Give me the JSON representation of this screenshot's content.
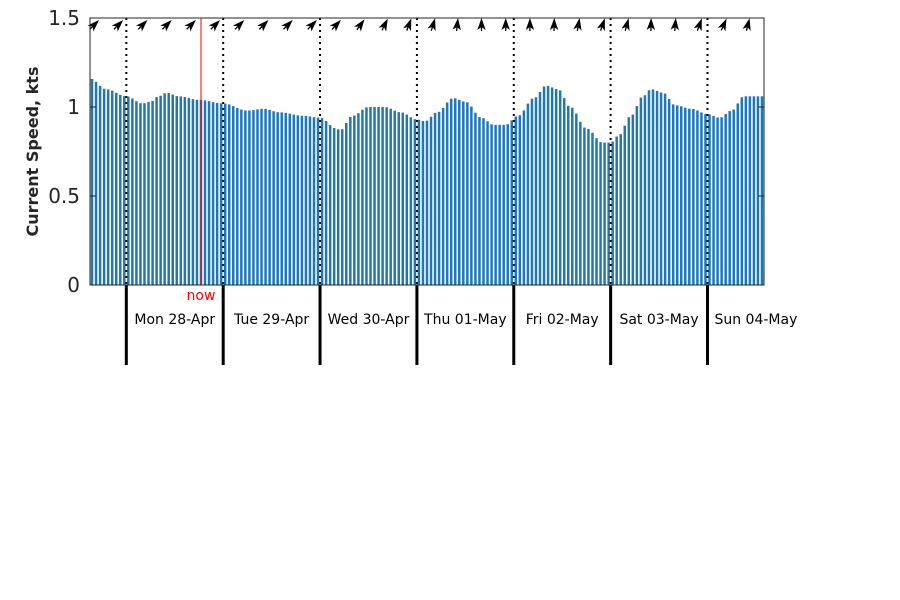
{
  "chart_data": {
    "type": "bar",
    "title": "",
    "xlabel": "",
    "ylabel": "Current Speed, kts",
    "ylim": [
      0,
      1.5
    ],
    "y_ticks": [
      {
        "value": 0,
        "label": "0"
      },
      {
        "value": 0.5,
        "label": "0.5"
      },
      {
        "value": 1,
        "label": "1"
      },
      {
        "value": 1.5,
        "label": "1.5"
      }
    ],
    "x_unit": "hours from 00:00 Mon 28-Apr",
    "x_start_hour": -9,
    "x_end_hour": 158,
    "bar_step_hours": 1,
    "bar_color": "#1f77b4",
    "days": [
      {
        "label": "Mon 28-Apr",
        "start_hour": 0
      },
      {
        "label": "Tue 29-Apr",
        "start_hour": 24
      },
      {
        "label": "Wed 30-Apr",
        "start_hour": 48
      },
      {
        "label": "Thu 01-May",
        "start_hour": 72
      },
      {
        "label": "Fri 02-May",
        "start_hour": 96
      },
      {
        "label": "Sat 03-May",
        "start_hour": 120
      },
      {
        "label": "Sun 04-May",
        "start_hour": 144
      }
    ],
    "now": {
      "label": "now",
      "hour": 18.5,
      "color": "#ff0000"
    },
    "speed_profile": [
      [
        -9,
        1.16
      ],
      [
        -5,
        1.1
      ],
      [
        0,
        1.06
      ],
      [
        4,
        1.02
      ],
      [
        6,
        1.03
      ],
      [
        8,
        1.06
      ],
      [
        10,
        1.08
      ],
      [
        13,
        1.06
      ],
      [
        18,
        1.04
      ],
      [
        24,
        1.02
      ],
      [
        30,
        0.98
      ],
      [
        34,
        0.99
      ],
      [
        38,
        0.97
      ],
      [
        44,
        0.95
      ],
      [
        48,
        0.94
      ],
      [
        52,
        0.88
      ],
      [
        53,
        0.87
      ],
      [
        56,
        0.95
      ],
      [
        60,
        1.0
      ],
      [
        64,
        1.0
      ],
      [
        68,
        0.97
      ],
      [
        72,
        0.93
      ],
      [
        74,
        0.92
      ],
      [
        77,
        0.97
      ],
      [
        81,
        1.05
      ],
      [
        84,
        1.03
      ],
      [
        88,
        0.94
      ],
      [
        91,
        0.9
      ],
      [
        94,
        0.9
      ],
      [
        97,
        0.95
      ],
      [
        101,
        1.05
      ],
      [
        104,
        1.12
      ],
      [
        107,
        1.1
      ],
      [
        110,
        1.0
      ],
      [
        114,
        0.88
      ],
      [
        118,
        0.8
      ],
      [
        120,
        0.8
      ],
      [
        122,
        0.84
      ],
      [
        125,
        0.95
      ],
      [
        128,
        1.06
      ],
      [
        130,
        1.1
      ],
      [
        133,
        1.08
      ],
      [
        136,
        1.01
      ],
      [
        140,
        0.99
      ],
      [
        144,
        0.96
      ],
      [
        147,
        0.94
      ],
      [
        150,
        0.98
      ],
      [
        153,
        1.06
      ],
      [
        155,
        1.06
      ],
      [
        158,
        1.06
      ]
    ],
    "direction_arrows": {
      "step_hours": 6,
      "bearing_profile": [
        [
          -9,
          45
        ],
        [
          48,
          45
        ],
        [
          72,
          20
        ],
        [
          88,
          0
        ],
        [
          104,
          0
        ],
        [
          120,
          20
        ],
        [
          132,
          0
        ],
        [
          146,
          25
        ],
        [
          158,
          10
        ]
      ]
    },
    "grid": false,
    "legend": "none"
  }
}
